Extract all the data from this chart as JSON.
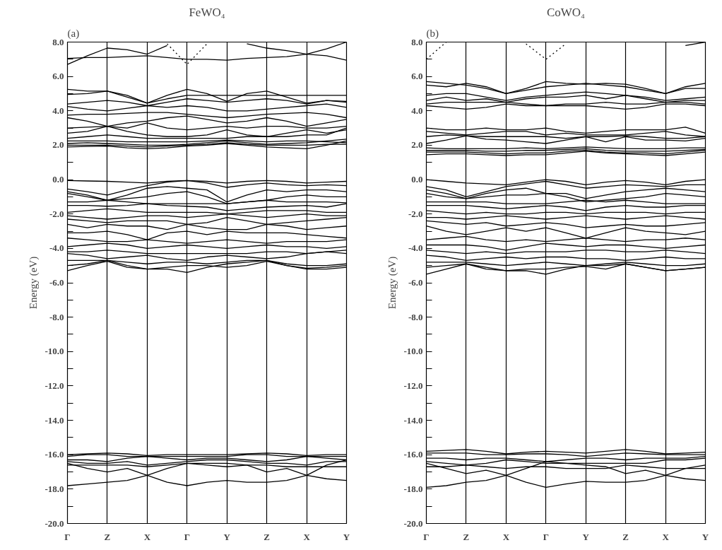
{
  "chart_data": [
    {
      "type": "line",
      "title": "FeWO₄",
      "ylabel": "Energy (eV)",
      "annotations": [
        "(a)"
      ],
      "categories": [
        "Γ",
        null,
        "Z",
        null,
        "X",
        null,
        "Γ",
        null,
        "Y",
        null,
        "Z",
        null,
        "X",
        null,
        "Y"
      ],
      "ylim": [
        -20,
        8
      ],
      "yticks": [
        {
          "value": 8,
          "label": "8.0"
        },
        {
          "value": 7,
          "label": null
        },
        {
          "value": 6,
          "label": "6.0"
        },
        {
          "value": 5,
          "label": null
        },
        {
          "value": 4,
          "label": "4.0"
        },
        {
          "value": 3,
          "label": null
        },
        {
          "value": 2,
          "label": "2.0"
        },
        {
          "value": 1,
          "label": null
        },
        {
          "value": 0,
          "label": "0.0"
        },
        {
          "value": -1,
          "label": null
        },
        {
          "value": -2,
          "label": "-2.0"
        },
        {
          "value": -3,
          "label": null
        },
        {
          "value": -4,
          "label": "-4.0"
        },
        {
          "value": -5,
          "label": null
        },
        {
          "value": -6,
          "label": "-6.0"
        },
        {
          "value": -7,
          "label": null
        },
        {
          "value": -8,
          "label": "-8.0"
        },
        {
          "value": -9,
          "label": null
        },
        {
          "value": -10,
          "label": "-10.0"
        },
        {
          "value": -11,
          "label": null
        },
        {
          "value": -12,
          "label": "-12.0"
        },
        {
          "value": -13,
          "label": null
        },
        {
          "value": -14,
          "label": "-14.0"
        },
        {
          "value": -15,
          "label": null
        },
        {
          "value": -16,
          "label": "-16.0"
        },
        {
          "value": -17,
          "label": null
        },
        {
          "value": -18,
          "label": "-18.0"
        },
        {
          "value": -19,
          "label": null
        },
        {
          "value": -20,
          "label": "-20.0"
        }
      ],
      "grid": "x",
      "line_style": "solid",
      "series": [
        {
          "color": "#000000",
          "values": [
            7.05,
            7.1,
            7.1,
            7.15,
            7.2,
            7.1,
            7.0,
            7.0,
            6.95,
            7.05,
            7.1,
            7.15,
            7.3,
            7.2,
            6.95
          ]
        },
        {
          "color": "#000000",
          "values": [
            6.7,
            7.2,
            7.65,
            7.55,
            7.3,
            7.8,
            null,
            null,
            null,
            null,
            null,
            null,
            null,
            null,
            null
          ]
        },
        {
          "color": "#000000",
          "values": [
            null,
            null,
            null,
            null,
            null,
            null,
            null,
            null,
            null,
            7.9,
            7.65,
            7.5,
            7.3,
            7.6,
            8.0
          ]
        },
        {
          "color": "#000000",
          "line_style": "dotted",
          "values": [
            null,
            null,
            null,
            null,
            null,
            7.9,
            6.7,
            7.9,
            null,
            null,
            null,
            null,
            null,
            null,
            null
          ]
        },
        {
          "color": "#000000",
          "values": [
            5.25,
            5.15,
            5.15,
            4.9,
            4.45,
            4.9,
            5.25,
            5.0,
            4.55,
            5.0,
            5.15,
            4.8,
            4.45,
            4.6,
            4.55
          ]
        },
        {
          "color": "#000000",
          "values": [
            4.95,
            5.0,
            5.15,
            4.8,
            4.45,
            4.7,
            4.9,
            4.9,
            4.9,
            4.9,
            4.9,
            4.9,
            4.9,
            4.9,
            4.9
          ]
        },
        {
          "color": "#000000",
          "values": [
            4.4,
            4.5,
            4.6,
            4.5,
            4.3,
            4.5,
            4.7,
            4.6,
            4.5,
            4.6,
            4.7,
            4.6,
            4.4,
            4.6,
            4.5
          ]
        },
        {
          "color": "#000000",
          "values": [
            4.25,
            4.1,
            4.0,
            4.15,
            4.3,
            4.2,
            4.3,
            4.2,
            4.0,
            4.0,
            4.1,
            4.2,
            4.3,
            4.4,
            4.2
          ]
        },
        {
          "color": "#000000",
          "values": [
            3.75,
            3.8,
            3.8,
            3.85,
            3.9,
            3.9,
            3.8,
            3.7,
            3.6,
            3.7,
            3.8,
            3.85,
            3.9,
            3.8,
            3.6
          ]
        },
        {
          "color": "#000000",
          "values": [
            3.6,
            3.4,
            3.1,
            3.3,
            3.4,
            3.6,
            3.7,
            3.5,
            3.3,
            3.4,
            3.6,
            3.4,
            3.1,
            3.3,
            3.5
          ]
        },
        {
          "color": "#000000",
          "values": [
            3.0,
            3.05,
            3.1,
            3.0,
            3.3,
            3.0,
            2.9,
            3.0,
            3.1,
            3.0,
            3.1,
            3.1,
            3.0,
            3.0,
            3.1
          ]
        },
        {
          "color": "#000000",
          "values": [
            2.7,
            2.8,
            3.1,
            2.8,
            2.6,
            2.5,
            2.5,
            2.6,
            2.9,
            2.6,
            2.5,
            2.7,
            2.9,
            2.7,
            2.9
          ]
        },
        {
          "color": "#000000",
          "values": [
            2.4,
            2.5,
            2.6,
            2.5,
            2.4,
            2.4,
            2.4,
            2.4,
            2.4,
            2.5,
            2.5,
            2.5,
            2.6,
            2.6,
            3.0
          ]
        },
        {
          "color": "#000000",
          "values": [
            2.25,
            2.25,
            2.25,
            2.2,
            2.2,
            2.2,
            2.2,
            2.25,
            2.3,
            2.25,
            2.2,
            2.25,
            2.25,
            2.2,
            2.15
          ]
        },
        {
          "color": "#000000",
          "values": [
            2.1,
            2.15,
            2.1,
            2.05,
            2.0,
            2.0,
            2.05,
            2.15,
            2.25,
            2.15,
            2.05,
            2.1,
            2.15,
            2.25,
            2.35
          ]
        },
        {
          "color": "#000000",
          "values": [
            2.0,
            2.0,
            2.0,
            1.95,
            1.9,
            1.95,
            2.0,
            2.05,
            2.15,
            2.05,
            2.0,
            2.0,
            2.0,
            2.05,
            2.05
          ]
        },
        {
          "color": "#000000",
          "values": [
            1.9,
            1.93,
            1.95,
            1.85,
            1.8,
            1.85,
            1.95,
            2.0,
            2.1,
            2.0,
            1.9,
            1.85,
            1.8,
            2.0,
            2.25
          ]
        },
        {
          "color": "#000000",
          "values": [
            -0.05,
            -0.08,
            -0.1,
            -0.15,
            -0.2,
            -0.1,
            -0.05,
            -0.1,
            -0.2,
            -0.1,
            -0.05,
            -0.1,
            -0.2,
            -0.15,
            -0.1
          ]
        },
        {
          "color": "#000000",
          "values": [
            -0.55,
            -0.7,
            -0.9,
            -0.6,
            -0.35,
            -0.15,
            -0.05,
            -0.2,
            -0.45,
            -0.3,
            -0.2,
            -0.3,
            -0.35,
            -0.3,
            -0.35
          ]
        },
        {
          "color": "#000000",
          "values": [
            -0.7,
            -0.9,
            -1.2,
            -0.9,
            -0.5,
            -0.4,
            -0.5,
            -0.6,
            -1.3,
            -0.9,
            -0.6,
            -0.7,
            -0.6,
            -0.6,
            -0.7
          ]
        },
        {
          "color": "#000000",
          "values": [
            -0.8,
            -1.0,
            -1.2,
            -1.1,
            -1.0,
            -0.8,
            -0.7,
            -1.0,
            -1.4,
            -1.3,
            -1.2,
            -1.0,
            -0.9,
            -1.0,
            -1.0
          ]
        },
        {
          "color": "#000000",
          "values": [
            -1.3,
            -1.3,
            -1.2,
            -1.3,
            -1.4,
            -1.4,
            -1.4,
            -1.4,
            -1.4,
            -1.3,
            -1.2,
            -1.3,
            -1.3,
            -1.3,
            -1.35
          ]
        },
        {
          "color": "#000000",
          "values": [
            -1.5,
            -1.5,
            -1.55,
            -1.5,
            -1.4,
            -1.5,
            -1.55,
            -1.6,
            -1.8,
            -1.7,
            -1.6,
            -1.55,
            -1.5,
            -1.6,
            -1.4
          ]
        },
        {
          "color": "#000000",
          "values": [
            -1.9,
            -1.8,
            -1.7,
            -1.8,
            -1.9,
            -1.9,
            -1.9,
            -1.9,
            -2.0,
            -1.9,
            -1.8,
            -1.8,
            -1.8,
            -1.9,
            -1.9
          ]
        },
        {
          "color": "#000000",
          "values": [
            -2.1,
            -2.2,
            -2.3,
            -2.2,
            -2.1,
            -2.1,
            -2.2,
            -2.1,
            -2.0,
            -2.1,
            -2.2,
            -2.1,
            -2.0,
            -2.1,
            -2.1
          ]
        },
        {
          "color": "#000000",
          "values": [
            -2.3,
            -2.4,
            -2.5,
            -2.4,
            -2.4,
            -2.4,
            -2.6,
            -2.5,
            -2.2,
            -2.4,
            -2.6,
            -2.5,
            -2.4,
            -2.3,
            -2.2
          ]
        },
        {
          "color": "#000000",
          "values": [
            -2.6,
            -2.8,
            -2.6,
            -2.7,
            -2.7,
            -2.9,
            -2.6,
            -2.8,
            -2.9,
            -2.9,
            -2.6,
            -2.7,
            -2.9,
            -2.8,
            -2.7
          ]
        },
        {
          "color": "#000000",
          "values": [
            -3.1,
            -3.1,
            -3.0,
            -3.2,
            -3.5,
            -3.1,
            -3.0,
            -3.2,
            -3.0,
            -3.1,
            -3.1,
            -3.1,
            -3.2,
            -3.3,
            -3.4
          ]
        },
        {
          "color": "#000000",
          "values": [
            -3.4,
            -3.5,
            -3.6,
            -3.6,
            -3.5,
            -3.6,
            -3.7,
            -3.6,
            -3.5,
            -3.6,
            -3.7,
            -3.6,
            -3.6,
            -3.6,
            -3.5
          ]
        },
        {
          "color": "#000000",
          "values": [
            -3.9,
            -3.8,
            -3.7,
            -3.8,
            -4.0,
            -3.9,
            -3.8,
            -3.9,
            -4.0,
            -3.9,
            -3.8,
            -3.9,
            -3.9,
            -4.0,
            -3.9
          ]
        },
        {
          "color": "#000000",
          "values": [
            -4.2,
            -4.2,
            -4.1,
            -4.2,
            -4.3,
            -4.3,
            -4.3,
            -4.3,
            -4.3,
            -4.3,
            -4.2,
            -4.2,
            -4.3,
            -4.2,
            -4.1
          ]
        },
        {
          "color": "#000000",
          "values": [
            -4.3,
            -4.4,
            -4.6,
            -4.5,
            -4.4,
            -4.6,
            -4.7,
            -4.5,
            -4.4,
            -4.5,
            -4.6,
            -4.5,
            -4.3,
            -4.2,
            -4.3
          ]
        },
        {
          "color": "#000000",
          "values": [
            -4.7,
            -4.7,
            -4.7,
            -4.8,
            -4.9,
            -4.8,
            -4.8,
            -4.9,
            -4.8,
            -4.7,
            -4.7,
            -4.9,
            -5.0,
            -5.0,
            -4.9
          ]
        },
        {
          "color": "#000000",
          "values": [
            -5.0,
            -4.9,
            -4.7,
            -5.0,
            -5.2,
            -5.2,
            -5.4,
            -5.1,
            -4.9,
            -4.8,
            -4.7,
            -5.0,
            -5.2,
            -5.2,
            -5.1
          ]
        },
        {
          "color": "#000000",
          "values": [
            -5.3,
            -5.0,
            -4.75,
            -5.1,
            -5.2,
            -5.1,
            -5.0,
            -5.0,
            -5.1,
            -5.0,
            -4.75,
            -5.0,
            -5.15,
            -5.1,
            -5.0
          ]
        },
        {
          "color": "#000000",
          "values": [
            -16.0,
            -15.95,
            -15.9,
            -15.95,
            -16.05,
            -16.0,
            -16.0,
            -16.0,
            -16.0,
            -15.95,
            -15.9,
            -15.95,
            -16.05,
            -16.0,
            -16.0
          ]
        },
        {
          "color": "#000000",
          "values": [
            -16.1,
            -16.0,
            -16.0,
            -16.1,
            -16.1,
            -16.1,
            -16.1,
            -16.1,
            -16.1,
            -16.0,
            -16.0,
            -16.1,
            -16.1,
            -16.1,
            -16.1
          ]
        },
        {
          "color": "#000000",
          "values": [
            -16.3,
            -16.3,
            -16.4,
            -16.2,
            -16.1,
            -16.2,
            -16.3,
            -16.2,
            -16.2,
            -16.3,
            -16.4,
            -16.3,
            -16.1,
            -16.2,
            -16.3
          ]
        },
        {
          "color": "#000000",
          "values": [
            -16.4,
            -16.5,
            -16.5,
            -16.4,
            -16.6,
            -16.5,
            -16.4,
            -16.3,
            -16.3,
            -16.4,
            -16.5,
            -16.5,
            -16.6,
            -16.4,
            -16.4
          ]
        },
        {
          "color": "#000000",
          "values": [
            -16.6,
            -16.6,
            -16.6,
            -16.6,
            -16.7,
            -16.6,
            -16.5,
            -16.6,
            -16.7,
            -16.6,
            -16.6,
            -16.7,
            -16.7,
            -16.7,
            -16.7
          ]
        },
        {
          "color": "#000000",
          "values": [
            -16.5,
            -16.8,
            -17.0,
            -16.8,
            -17.2,
            -16.8,
            -16.5,
            -16.5,
            -16.5,
            -16.6,
            -17.0,
            -16.8,
            -17.2,
            -16.6,
            -16.3
          ]
        },
        {
          "color": "#000000",
          "values": [
            -17.8,
            -17.7,
            -17.6,
            -17.5,
            -17.2,
            -17.6,
            -17.8,
            -17.6,
            -17.5,
            -17.6,
            -17.6,
            -17.5,
            -17.2,
            -17.4,
            -17.5
          ]
        }
      ]
    },
    {
      "type": "line",
      "title": "CoWO₄",
      "ylabel": "Energy (eV)",
      "annotations": [
        "(b)"
      ],
      "categories": [
        "Γ",
        null,
        "Z",
        null,
        "X",
        null,
        "Γ",
        null,
        "Y",
        null,
        "Z",
        null,
        "X",
        null,
        "Y"
      ],
      "ylim": [
        -20,
        8
      ],
      "yticks": [
        {
          "value": 8,
          "label": "8.0"
        },
        {
          "value": 7,
          "label": null
        },
        {
          "value": 6,
          "label": "6.0"
        },
        {
          "value": 5,
          "label": null
        },
        {
          "value": 4,
          "label": "4.0"
        },
        {
          "value": 3,
          "label": null
        },
        {
          "value": 2,
          "label": "2.0"
        },
        {
          "value": 1,
          "label": null
        },
        {
          "value": 0,
          "label": "0.0"
        },
        {
          "value": -1,
          "label": null
        },
        {
          "value": -2,
          "label": "-2.0"
        },
        {
          "value": -3,
          "label": null
        },
        {
          "value": -4,
          "label": "-4.0"
        },
        {
          "value": -5,
          "label": null
        },
        {
          "value": -6,
          "label": "-6.0"
        },
        {
          "value": -7,
          "label": null
        },
        {
          "value": -8,
          "label": "-8.0"
        },
        {
          "value": -9,
          "label": null
        },
        {
          "value": -10,
          "label": "-10.0"
        },
        {
          "value": -11,
          "label": null
        },
        {
          "value": -12,
          "label": "-12.0"
        },
        {
          "value": -13,
          "label": null
        },
        {
          "value": -14,
          "label": "-14.0"
        },
        {
          "value": -15,
          "label": null
        },
        {
          "value": -16,
          "label": "-16.0"
        },
        {
          "value": -17,
          "label": null
        },
        {
          "value": -18,
          "label": "-18.0"
        },
        {
          "value": -19,
          "label": null
        },
        {
          "value": -20,
          "label": "-20.0"
        }
      ],
      "grid": "x",
      "line_style": "solid",
      "series": [
        {
          "color": "#000000",
          "line_style": "dotted",
          "values": [
            7.0,
            8.0,
            null,
            null,
            null,
            null,
            null,
            null,
            null,
            null,
            null,
            null,
            null,
            null,
            null
          ]
        },
        {
          "color": "#000000",
          "line_style": "dotted",
          "values": [
            null,
            null,
            null,
            null,
            null,
            7.9,
            7.0,
            7.9,
            null,
            null,
            null,
            null,
            null,
            null,
            null
          ]
        },
        {
          "color": "#000000",
          "values": [
            null,
            null,
            null,
            null,
            null,
            null,
            null,
            null,
            null,
            null,
            null,
            null,
            null,
            7.8,
            8.0
          ]
        },
        {
          "color": "#000000",
          "values": [
            5.7,
            5.6,
            5.5,
            5.3,
            5.0,
            5.3,
            5.7,
            5.6,
            5.55,
            5.6,
            5.55,
            5.3,
            5.0,
            5.4,
            5.6
          ]
        },
        {
          "color": "#000000",
          "values": [
            5.5,
            5.4,
            5.6,
            5.4,
            5.0,
            5.2,
            5.4,
            5.5,
            5.6,
            5.5,
            5.4,
            5.2,
            5.0,
            5.3,
            5.3
          ]
        },
        {
          "color": "#000000",
          "values": [
            4.9,
            5.0,
            5.0,
            4.8,
            4.6,
            4.8,
            4.9,
            5.0,
            5.1,
            5.0,
            4.9,
            4.8,
            4.6,
            4.7,
            4.8
          ]
        },
        {
          "color": "#000000",
          "values": [
            4.6,
            4.8,
            4.6,
            4.7,
            4.5,
            4.7,
            4.8,
            4.8,
            4.9,
            4.7,
            4.9,
            4.7,
            4.5,
            4.6,
            4.6
          ]
        },
        {
          "color": "#000000",
          "values": [
            4.4,
            4.5,
            4.5,
            4.5,
            4.5,
            4.4,
            4.3,
            4.4,
            4.4,
            4.5,
            4.4,
            4.4,
            4.5,
            4.5,
            4.4
          ]
        },
        {
          "color": "#000000",
          "values": [
            4.3,
            4.2,
            4.1,
            4.2,
            4.4,
            4.3,
            4.3,
            4.3,
            4.3,
            4.2,
            4.1,
            4.2,
            4.4,
            4.4,
            4.3
          ]
        },
        {
          "color": "#000000",
          "values": [
            3.0,
            2.9,
            2.9,
            3.0,
            2.9,
            2.9,
            3.0,
            2.8,
            2.7,
            2.8,
            2.9,
            2.9,
            2.9,
            3.05,
            2.7
          ]
        },
        {
          "color": "#000000",
          "values": [
            2.8,
            2.7,
            2.6,
            2.7,
            2.8,
            2.8,
            2.6,
            2.7,
            2.6,
            2.6,
            2.6,
            2.7,
            2.8,
            2.6,
            2.5
          ]
        },
        {
          "color": "#000000",
          "values": [
            2.5,
            2.6,
            2.55,
            2.5,
            2.5,
            2.5,
            2.5,
            2.4,
            2.5,
            2.5,
            2.55,
            2.5,
            2.4,
            2.4,
            2.5
          ]
        },
        {
          "color": "#000000",
          "values": [
            2.1,
            2.3,
            2.55,
            2.35,
            2.3,
            2.2,
            2.1,
            2.3,
            2.5,
            2.2,
            2.5,
            2.3,
            2.3,
            2.25,
            2.4
          ]
        },
        {
          "color": "#000000",
          "values": [
            1.85,
            1.8,
            1.8,
            1.8,
            1.8,
            1.85,
            1.8,
            1.85,
            1.9,
            1.85,
            1.8,
            1.8,
            1.8,
            1.85,
            1.85
          ]
        },
        {
          "color": "#000000",
          "values": [
            1.7,
            1.7,
            1.7,
            1.65,
            1.65,
            1.7,
            1.7,
            1.75,
            1.8,
            1.7,
            1.65,
            1.65,
            1.65,
            1.7,
            1.75
          ]
        },
        {
          "color": "#000000",
          "values": [
            1.6,
            1.6,
            1.6,
            1.55,
            1.5,
            1.55,
            1.55,
            1.65,
            1.7,
            1.6,
            1.55,
            1.55,
            1.5,
            1.6,
            1.7
          ]
        },
        {
          "color": "#000000",
          "values": [
            1.45,
            1.5,
            1.5,
            1.45,
            1.4,
            1.45,
            1.45,
            1.55,
            1.65,
            1.55,
            1.5,
            1.45,
            1.4,
            1.5,
            1.6
          ]
        },
        {
          "color": "#000000",
          "values": [
            0.0,
            -0.1,
            -0.2,
            -0.25,
            -0.3,
            -0.15,
            0.0,
            -0.1,
            -0.3,
            -0.15,
            -0.05,
            -0.15,
            -0.3,
            -0.1,
            0.0
          ]
        },
        {
          "color": "#000000",
          "values": [
            -0.4,
            -0.6,
            -1.0,
            -0.7,
            -0.4,
            -0.25,
            -0.1,
            -0.3,
            -0.5,
            -0.4,
            -0.3,
            -0.35,
            -0.4,
            -0.3,
            -0.3
          ]
        },
        {
          "color": "#000000",
          "values": [
            -0.6,
            -0.8,
            -1.1,
            -0.8,
            -0.6,
            -0.5,
            -0.8,
            -0.8,
            -1.1,
            -0.9,
            -0.7,
            -0.6,
            -0.5,
            -0.6,
            -0.7
          ]
        },
        {
          "color": "#000000",
          "values": [
            -0.8,
            -1.0,
            -1.1,
            -1.0,
            -0.9,
            -0.9,
            -0.8,
            -1.0,
            -1.3,
            -1.2,
            -1.1,
            -1.0,
            -0.8,
            -0.9,
            -1.0
          ]
        },
        {
          "color": "#000000",
          "values": [
            -1.3,
            -1.3,
            -1.3,
            -1.3,
            -1.4,
            -1.4,
            -1.4,
            -1.3,
            -1.2,
            -1.3,
            -1.2,
            -1.3,
            -1.4,
            -1.4,
            -1.4
          ]
        },
        {
          "color": "#000000",
          "values": [
            -1.5,
            -1.5,
            -1.5,
            -1.6,
            -1.7,
            -1.6,
            -1.5,
            -1.6,
            -1.8,
            -1.6,
            -1.5,
            -1.6,
            -1.6,
            -1.5,
            -1.5
          ]
        },
        {
          "color": "#000000",
          "values": [
            -1.8,
            -1.9,
            -2.0,
            -1.9,
            -2.0,
            -2.0,
            -1.9,
            -1.9,
            -2.0,
            -1.9,
            -1.9,
            -1.9,
            -2.0,
            -1.9,
            -1.9
          ]
        },
        {
          "color": "#000000",
          "values": [
            -2.2,
            -2.2,
            -2.3,
            -2.2,
            -2.1,
            -2.2,
            -2.3,
            -2.2,
            -2.1,
            -2.2,
            -2.3,
            -2.2,
            -2.1,
            -2.2,
            -2.3
          ]
        },
        {
          "color": "#000000",
          "values": [
            -2.4,
            -2.5,
            -2.6,
            -2.5,
            -2.7,
            -2.6,
            -2.5,
            -2.6,
            -2.8,
            -2.7,
            -2.6,
            -2.7,
            -2.7,
            -2.6,
            -2.5
          ]
        },
        {
          "color": "#000000",
          "values": [
            -2.7,
            -3.0,
            -3.2,
            -3.0,
            -2.8,
            -3.0,
            -2.8,
            -3.1,
            -3.4,
            -3.1,
            -2.8,
            -3.0,
            -3.1,
            -3.2,
            -3.0
          ]
        },
        {
          "color": "#000000",
          "values": [
            -3.5,
            -3.4,
            -3.3,
            -3.5,
            -3.6,
            -3.5,
            -3.6,
            -3.5,
            -3.4,
            -3.5,
            -3.6,
            -3.5,
            -3.5,
            -3.4,
            -3.5
          ]
        },
        {
          "color": "#000000",
          "values": [
            -3.8,
            -3.8,
            -3.8,
            -3.9,
            -4.1,
            -3.9,
            -3.7,
            -3.8,
            -3.9,
            -3.8,
            -3.8,
            -3.9,
            -4.0,
            -3.9,
            -3.8
          ]
        },
        {
          "color": "#000000",
          "values": [
            -4.1,
            -4.2,
            -4.3,
            -4.2,
            -4.3,
            -4.2,
            -4.2,
            -4.2,
            -4.1,
            -4.1,
            -4.2,
            -4.2,
            -4.1,
            -4.2,
            -4.3
          ]
        },
        {
          "color": "#000000",
          "values": [
            -4.4,
            -4.5,
            -4.7,
            -4.6,
            -4.5,
            -4.6,
            -4.5,
            -4.5,
            -4.6,
            -4.6,
            -4.7,
            -4.6,
            -4.5,
            -4.6,
            -4.6
          ]
        },
        {
          "color": "#000000",
          "values": [
            -4.8,
            -4.8,
            -4.8,
            -4.9,
            -5.0,
            -4.9,
            -4.8,
            -4.9,
            -5.0,
            -4.9,
            -4.8,
            -4.9,
            -5.0,
            -5.0,
            -4.9
          ]
        },
        {
          "color": "#000000",
          "values": [
            -5.1,
            -5.0,
            -4.9,
            -5.1,
            -5.3,
            -5.3,
            -5.5,
            -5.2,
            -5.0,
            -5.0,
            -4.9,
            -5.1,
            -5.3,
            -5.2,
            -5.1
          ]
        },
        {
          "color": "#000000",
          "values": [
            -5.5,
            -5.2,
            -4.9,
            -5.2,
            -5.3,
            -5.2,
            -5.2,
            -5.1,
            -5.05,
            -5.2,
            -4.9,
            -5.1,
            -5.3,
            -5.2,
            -5.1
          ]
        },
        {
          "color": "#000000",
          "values": [
            -15.8,
            -15.75,
            -15.7,
            -15.8,
            -15.95,
            -15.85,
            -15.8,
            -15.85,
            -15.9,
            -15.8,
            -15.7,
            -15.8,
            -15.95,
            -15.9,
            -15.85
          ]
        },
        {
          "color": "#000000",
          "values": [
            -15.9,
            -15.9,
            -15.9,
            -16.0,
            -16.0,
            -15.95,
            -15.95,
            -16.0,
            -16.1,
            -16.0,
            -15.9,
            -15.95,
            -16.0,
            -16.0,
            -16.0
          ]
        },
        {
          "color": "#000000",
          "values": [
            -16.2,
            -16.2,
            -16.3,
            -16.2,
            -16.2,
            -16.3,
            -16.4,
            -16.3,
            -16.2,
            -16.2,
            -16.3,
            -16.2,
            -16.2,
            -16.2,
            -16.1
          ]
        },
        {
          "color": "#000000",
          "values": [
            -16.4,
            -16.5,
            -16.6,
            -16.5,
            -16.3,
            -16.4,
            -16.5,
            -16.5,
            -16.5,
            -16.5,
            -16.5,
            -16.5,
            -16.3,
            -16.3,
            -16.2
          ]
        },
        {
          "color": "#000000",
          "values": [
            -16.7,
            -16.7,
            -16.6,
            -16.7,
            -16.8,
            -16.7,
            -16.7,
            -16.8,
            -16.8,
            -16.8,
            -16.6,
            -16.7,
            -16.8,
            -16.8,
            -16.8
          ]
        },
        {
          "color": "#000000",
          "values": [
            -16.5,
            -16.8,
            -17.1,
            -16.9,
            -17.2,
            -16.8,
            -16.4,
            -16.5,
            -16.6,
            -16.7,
            -17.1,
            -16.9,
            -17.2,
            -16.8,
            -16.6
          ]
        },
        {
          "color": "#000000",
          "values": [
            -17.9,
            -17.8,
            -17.6,
            -17.5,
            -17.2,
            -17.6,
            -17.9,
            -17.7,
            -17.55,
            -17.6,
            -17.6,
            -17.5,
            -17.2,
            -17.4,
            -17.5
          ]
        }
      ]
    }
  ]
}
